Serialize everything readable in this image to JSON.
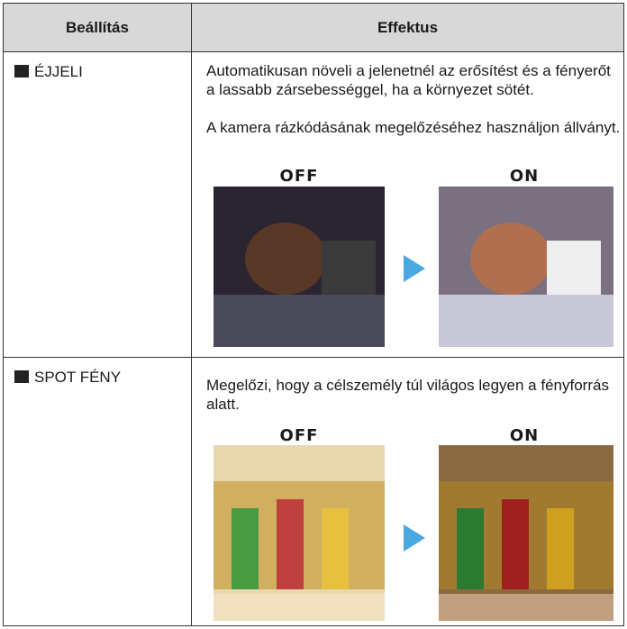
{
  "table": {
    "headers": [
      "Beállítás",
      "Effektus"
    ],
    "rows": [
      {
        "setting": "ÉJJELI",
        "effect": [
          "Automatikusan növeli a jelenetnél az erősítést és a fényerőt a lassabb zársebességgel, ha a környezet sötét.",
          "A kamera rázkódásának megelőzéséhez használjon állványt."
        ],
        "before_label": "OFF",
        "after_label": "ON"
      },
      {
        "setting": "SPOT FÉNY",
        "effect": [
          "Megelőzi, hogy a célszemély túl világos legyen a fényforrás alatt."
        ],
        "before_label": "OFF",
        "after_label": "ON"
      }
    ]
  }
}
